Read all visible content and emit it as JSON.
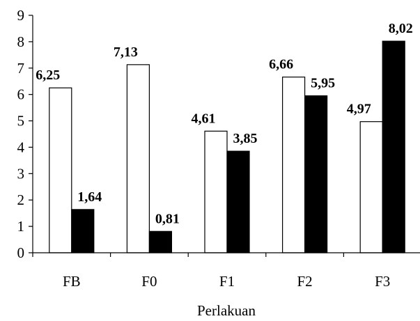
{
  "chart_data": {
    "type": "bar",
    "categories": [
      "FB",
      "F0",
      "F1",
      "F2",
      "F3"
    ],
    "series": [
      {
        "values": [
          6.25,
          7.13,
          4.61,
          6.66,
          4.97
        ],
        "value_labels": [
          "6,25",
          "7,13",
          "4,61",
          "6,66",
          "4,97"
        ],
        "fill": "#ffffff"
      },
      {
        "values": [
          1.64,
          0.81,
          3.85,
          5.95,
          8.02
        ],
        "value_labels": [
          "1,64",
          "0,81",
          "3,85",
          "5,95",
          "8,02"
        ],
        "fill": "#000000"
      }
    ],
    "title": "",
    "xlabel": "Perlakuan",
    "ylabel": "",
    "ylim": [
      0,
      9
    ],
    "yticks": [
      "0",
      "1",
      "2",
      "3",
      "4",
      "5",
      "6",
      "7",
      "8",
      "9"
    ],
    "grid": false,
    "legend": "none"
  }
}
